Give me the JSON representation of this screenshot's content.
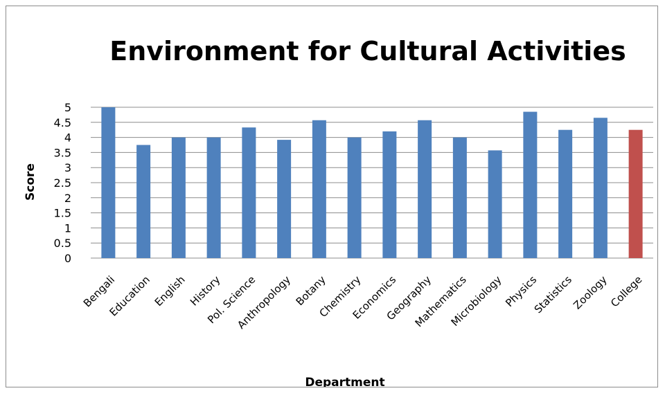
{
  "chart_data": {
    "type": "bar",
    "title": "Environment for Cultural Activities",
    "xlabel": "Department",
    "ylabel": "Score",
    "categories": [
      "Bengali",
      "Education",
      "English",
      "History",
      "Pol. Science",
      "Anthropology",
      "Botany",
      "Chemistry",
      "Economics",
      "Geography",
      "Mathematics",
      "Microbiology",
      "Physics",
      "Statistics",
      "Zoology",
      "College"
    ],
    "values": [
      5.0,
      3.75,
      4.0,
      4.0,
      4.33,
      3.92,
      4.57,
      4.0,
      4.2,
      4.57,
      4.0,
      3.57,
      4.85,
      4.25,
      4.65,
      4.25
    ],
    "bar_colors": [
      "#4f81bd",
      "#4f81bd",
      "#4f81bd",
      "#4f81bd",
      "#4f81bd",
      "#4f81bd",
      "#4f81bd",
      "#4f81bd",
      "#4f81bd",
      "#4f81bd",
      "#4f81bd",
      "#4f81bd",
      "#4f81bd",
      "#4f81bd",
      "#4f81bd",
      "#c0504d"
    ],
    "ylim": [
      0,
      5
    ],
    "yticks": [
      "0",
      "0.5",
      "1",
      "1.5",
      "2",
      "2.5",
      "3",
      "3.5",
      "4",
      "4.5",
      "5"
    ],
    "grid": true,
    "legend": "none"
  }
}
